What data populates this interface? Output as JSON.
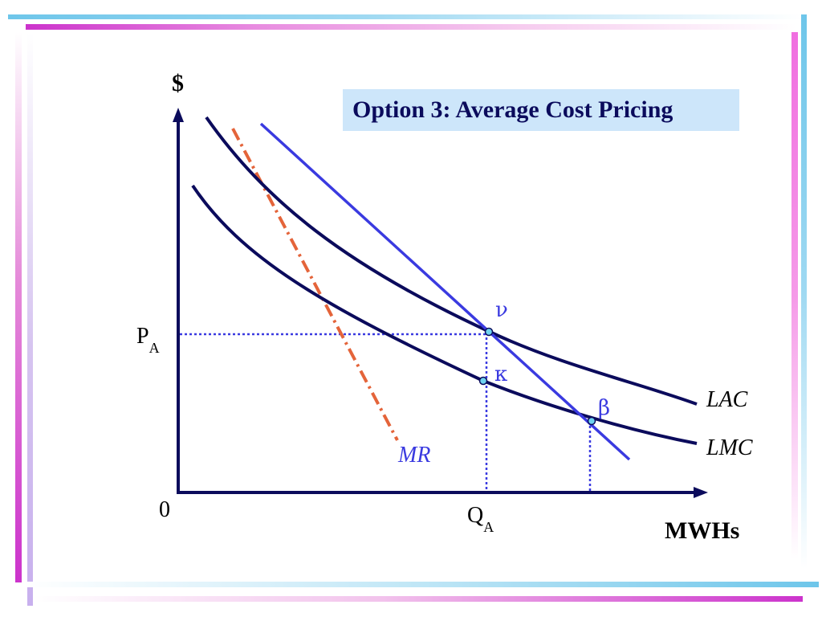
{
  "title": "Option 3: Average Cost Pricing",
  "axes": {
    "y_label": "$",
    "x_label": "MWHs",
    "origin": "0"
  },
  "ticks": {
    "price": {
      "main": "P",
      "sub": "A"
    },
    "quantity": {
      "main": "Q",
      "sub": "A"
    }
  },
  "curves": {
    "lac": "LAC",
    "lmc": "LMC",
    "mr": "MR"
  },
  "points": {
    "nu": "ν",
    "kappa": "κ",
    "beta": "β"
  },
  "colors": {
    "axis": "#0b0b5c",
    "cost_curves": "#0b0b5c",
    "demand": "#3a3ae0",
    "mr": "#e4643a",
    "guides": "#3a3ae0",
    "point_fill": "#6fd3f0",
    "title_box": "#cde6fa"
  }
}
